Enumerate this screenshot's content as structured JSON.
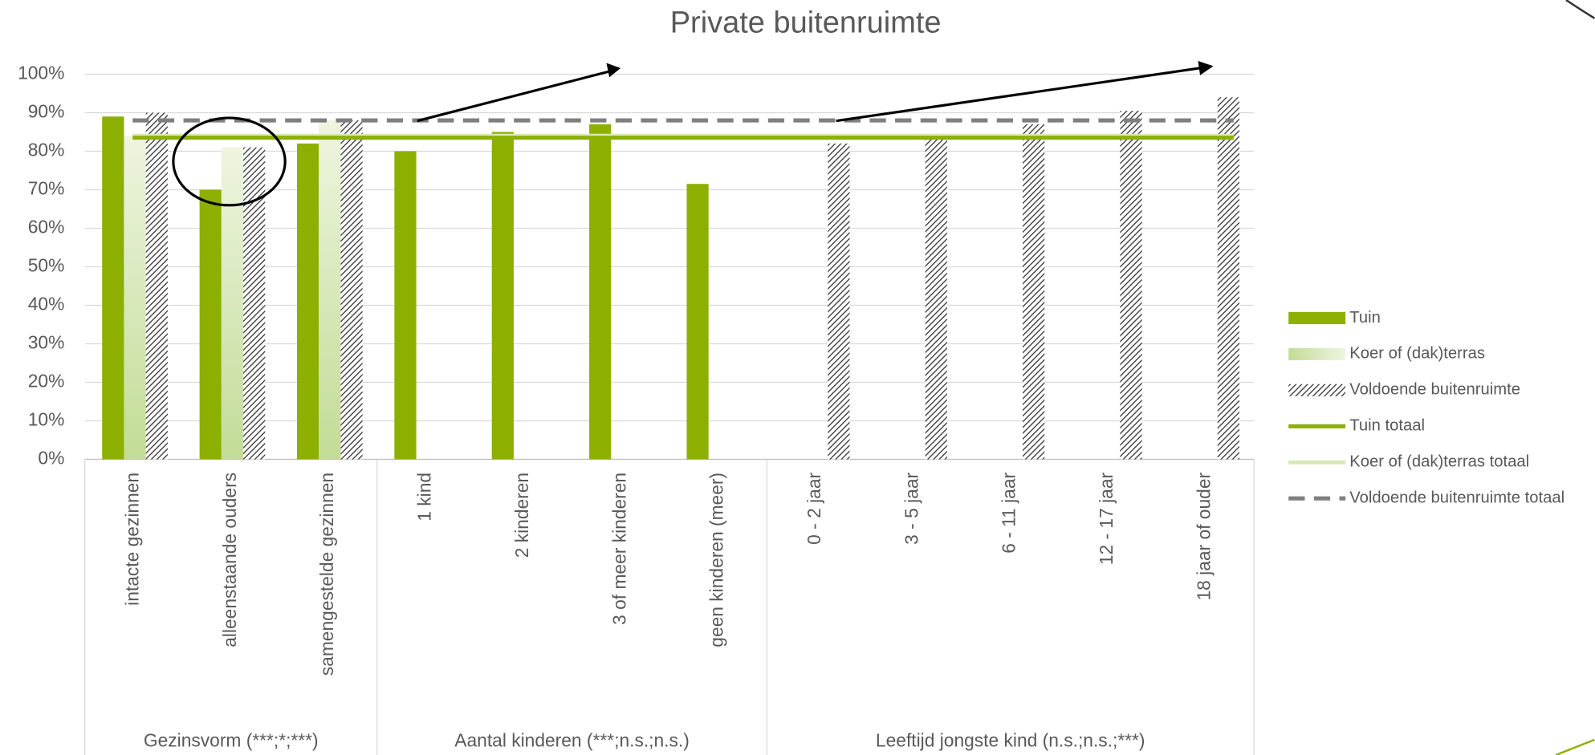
{
  "chart_data": {
    "type": "bar",
    "title": "Private buitenruimte",
    "categories": [
      "intacte gezinnen",
      "alleenstaande ouders",
      "samengestelde gezinnen",
      "1 kind",
      "2 kinderen",
      "3 of meer kinderen",
      "geen kinderen (meer)",
      "0 - 2 jaar",
      "3 - 5 jaar",
      "6 - 11 jaar",
      "12 - 17 jaar",
      "18 jaar of ouder"
    ],
    "groups": [
      {
        "label": "Gezinsvorm (***;*;***)",
        "size": 3
      },
      {
        "label": "Aantal kinderen (***;n.s.;n.s.)",
        "size": 4
      },
      {
        "label": "Leeftijd jongste kind  (n.s.;n.s.;***)",
        "size": 5
      }
    ],
    "series": [
      {
        "name": "Tuin",
        "color": "#8db000",
        "fill": "solid",
        "values": [
          89,
          70,
          82,
          80,
          85,
          87,
          71.5,
          null,
          null,
          null,
          null,
          null
        ]
      },
      {
        "name": "Koer of (dak)terras",
        "color": "#c9dfa0",
        "fill": "gradient",
        "values": [
          84,
          81,
          88,
          null,
          null,
          null,
          null,
          null,
          null,
          null,
          null,
          null
        ]
      },
      {
        "name": "Voldoende buitenruimte",
        "color": "#404040",
        "fill": "hatch",
        "values": [
          90,
          81,
          88,
          null,
          null,
          null,
          null,
          82,
          84.5,
          87,
          90.5,
          94
        ]
      }
    ],
    "reference_lines": [
      {
        "name": "Tuin totaal",
        "color": "#8db000",
        "style": "solid",
        "value": 83.5
      },
      {
        "name": "Koer of (dak)terras totaal",
        "color": "#d9e8b8",
        "style": "solid",
        "value": 84
      },
      {
        "name": "Voldoende buitenruimte totaal",
        "color": "#7f7f7f",
        "style": "dashed",
        "value": 88
      }
    ],
    "ylim": [
      0,
      100
    ],
    "yticks": [
      {
        "value": 0,
        "label": "0%"
      },
      {
        "value": 10,
        "label": "10%"
      },
      {
        "value": 20,
        "label": "20%"
      },
      {
        "value": 30,
        "label": "30%"
      },
      {
        "value": 40,
        "label": "40%"
      },
      {
        "value": 50,
        "label": "50%"
      },
      {
        "value": 60,
        "label": "60%"
      },
      {
        "value": 70,
        "label": "70%"
      },
      {
        "value": 80,
        "label": "80%"
      },
      {
        "value": 90,
        "label": "90%"
      },
      {
        "value": 100,
        "label": "100%"
      }
    ],
    "grid": true,
    "legend": "right"
  }
}
